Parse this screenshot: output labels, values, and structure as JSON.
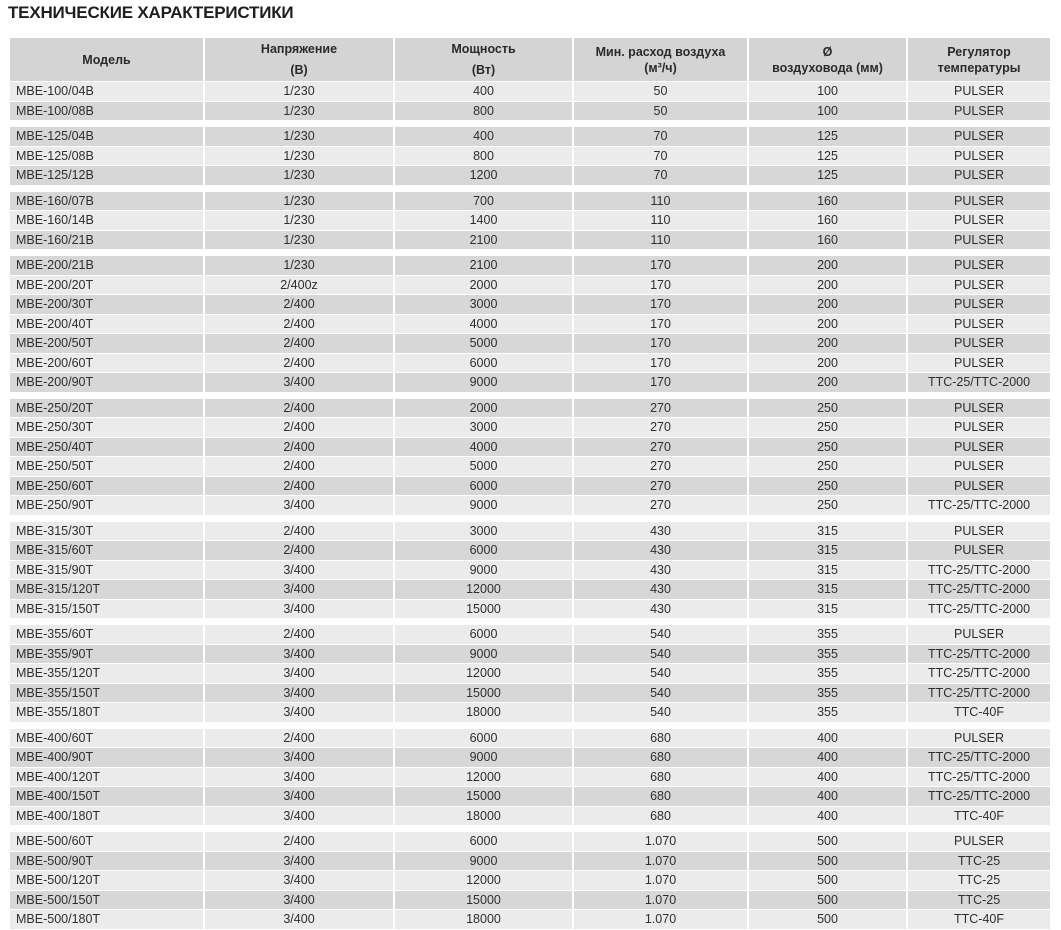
{
  "title": "ТЕХНИЧЕСКИЕ ХАРАКТЕРИСТИКИ",
  "headers": [
    {
      "line1": "Модель",
      "line2": ""
    },
    {
      "line1": "Напряжение",
      "line2": "(В)"
    },
    {
      "line1": "Мощность",
      "line2": "(Вт)"
    },
    {
      "line1": "Мин. расход воздуха",
      "line2": "(м³/ч)"
    },
    {
      "line1": "Ø",
      "line2": "воздуховода (мм)"
    },
    {
      "line1": "Регулятор",
      "line2": "температуры"
    }
  ],
  "groups": [
    [
      [
        "MBE-100/04B",
        "1/230",
        "400",
        "50",
        "100",
        "PULSER"
      ],
      [
        "MBE-100/08B",
        "1/230",
        "800",
        "50",
        "100",
        "PULSER"
      ]
    ],
    [
      [
        "MBE-125/04B",
        "1/230",
        "400",
        "70",
        "125",
        "PULSER"
      ],
      [
        "MBE-125/08B",
        "1/230",
        "800",
        "70",
        "125",
        "PULSER"
      ],
      [
        "MBE-125/12B",
        "1/230",
        "1200",
        "70",
        "125",
        "PULSER"
      ]
    ],
    [
      [
        "MBE-160/07B",
        "1/230",
        "700",
        "110",
        "160",
        "PULSER"
      ],
      [
        "MBE-160/14B",
        "1/230",
        "1400",
        "110",
        "160",
        "PULSER"
      ],
      [
        "MBE-160/21B",
        "1/230",
        "2100",
        "110",
        "160",
        "PULSER"
      ]
    ],
    [
      [
        "MBE-200/21B",
        "1/230",
        "2100",
        "170",
        "200",
        "PULSER"
      ],
      [
        "MBE-200/20T",
        "2/400z",
        "2000",
        "170",
        "200",
        "PULSER"
      ],
      [
        "MBE-200/30T",
        "2/400",
        "3000",
        "170",
        "200",
        "PULSER"
      ],
      [
        "MBE-200/40T",
        "2/400",
        "4000",
        "170",
        "200",
        "PULSER"
      ],
      [
        "MBE-200/50T",
        "2/400",
        "5000",
        "170",
        "200",
        "PULSER"
      ],
      [
        "MBE-200/60T",
        "2/400",
        "6000",
        "170",
        "200",
        "PULSER"
      ],
      [
        "MBE-200/90T",
        "3/400",
        "9000",
        "170",
        "200",
        "TTC-25/TTC-2000"
      ]
    ],
    [
      [
        "MBE-250/20T",
        "2/400",
        "2000",
        "270",
        "250",
        "PULSER"
      ],
      [
        "MBE-250/30T",
        "2/400",
        "3000",
        "270",
        "250",
        "PULSER"
      ],
      [
        "MBE-250/40T",
        "2/400",
        "4000",
        "270",
        "250",
        "PULSER"
      ],
      [
        "MBE-250/50T",
        "2/400",
        "5000",
        "270",
        "250",
        "PULSER"
      ],
      [
        "MBE-250/60T",
        "2/400",
        "6000",
        "270",
        "250",
        "PULSER"
      ],
      [
        "MBE-250/90T",
        "3/400",
        "9000",
        "270",
        "250",
        "TTC-25/TTC-2000"
      ]
    ],
    [
      [
        "MBE-315/30T",
        "2/400",
        "3000",
        "430",
        "315",
        "PULSER"
      ],
      [
        "MBE-315/60T",
        "2/400",
        "6000",
        "430",
        "315",
        "PULSER"
      ],
      [
        "MBE-315/90T",
        "3/400",
        "9000",
        "430",
        "315",
        "TTC-25/TTC-2000"
      ],
      [
        "MBE-315/120T",
        "3/400",
        "12000",
        "430",
        "315",
        "TTC-25/TTC-2000"
      ],
      [
        "MBE-315/150T",
        "3/400",
        "15000",
        "430",
        "315",
        "TTC-25/TTC-2000"
      ]
    ],
    [
      [
        "MBE-355/60T",
        "2/400",
        "6000",
        "540",
        "355",
        "PULSER"
      ],
      [
        "MBE-355/90T",
        "3/400",
        "9000",
        "540",
        "355",
        "TTC-25/TTC-2000"
      ],
      [
        "MBE-355/120T",
        "3/400",
        "12000",
        "540",
        "355",
        "TTC-25/TTC-2000"
      ],
      [
        "MBE-355/150T",
        "3/400",
        "15000",
        "540",
        "355",
        "TTC-25/TTC-2000"
      ],
      [
        "MBE-355/180T",
        "3/400",
        "18000",
        "540",
        "355",
        "TTC-40F"
      ]
    ],
    [
      [
        "MBE-400/60T",
        "2/400",
        "6000",
        "680",
        "400",
        "PULSER"
      ],
      [
        "MBE-400/90T",
        "3/400",
        "9000",
        "680",
        "400",
        "TTC-25/TTC-2000"
      ],
      [
        "MBE-400/120T",
        "3/400",
        "12000",
        "680",
        "400",
        "TTC-25/TTC-2000"
      ],
      [
        "MBE-400/150T",
        "3/400",
        "15000",
        "680",
        "400",
        "TTC-25/TTC-2000"
      ],
      [
        "MBE-400/180T",
        "3/400",
        "18000",
        "680",
        "400",
        "TTC-40F"
      ]
    ],
    [
      [
        "MBE-500/60T",
        "2/400",
        "6000",
        "1.070",
        "500",
        "PULSER"
      ],
      [
        "MBE-500/90T",
        "3/400",
        "9000",
        "1.070",
        "500",
        "TTC-25"
      ],
      [
        "MBE-500/120T",
        "3/400",
        "12000",
        "1.070",
        "500",
        "TTC-25"
      ],
      [
        "MBE-500/150T",
        "3/400",
        "15000",
        "1.070",
        "500",
        "TTC-25"
      ],
      [
        "MBE-500/180T",
        "3/400",
        "18000",
        "1.070",
        "500",
        "TTC-40F"
      ]
    ]
  ]
}
